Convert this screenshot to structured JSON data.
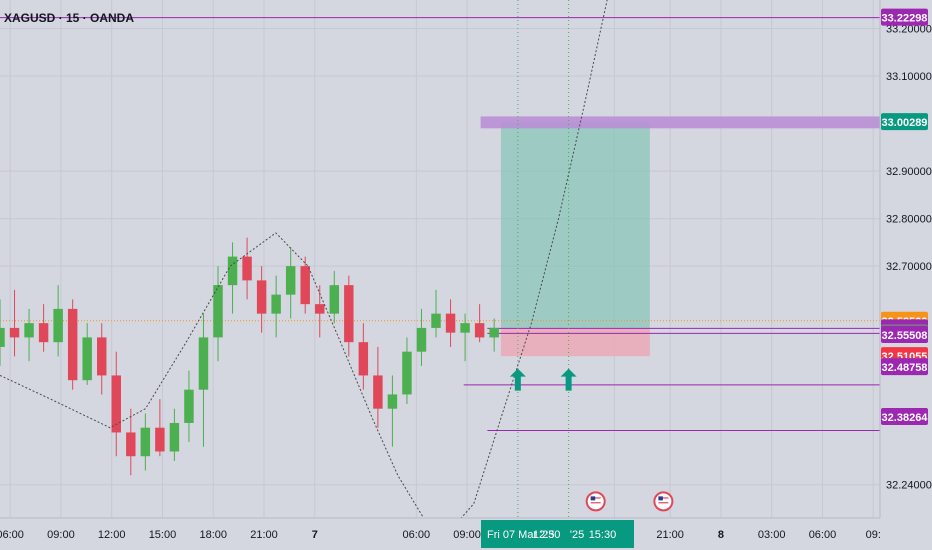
{
  "header": {
    "symbol": "XAGUSD · 15 · OANDA"
  },
  "chart_data": {
    "type": "candlestick",
    "title": "XAGUSD · 15 · OANDA",
    "ylim": [
      32.17,
      33.26
    ],
    "x_ticks": [
      {
        "label": "06:00",
        "x": 0.6
      },
      {
        "label": "09:00",
        "x": 3.6
      },
      {
        "label": "12:00",
        "x": 6.6
      },
      {
        "label": "15:00",
        "x": 9.6
      },
      {
        "label": "18:00",
        "x": 12.6
      },
      {
        "label": "21:00",
        "x": 15.6
      },
      {
        "label": "7",
        "x": 18.6,
        "bold": true
      },
      {
        "label": "06:00",
        "x": 24.6
      },
      {
        "label": "09:00",
        "x": 27.6
      },
      {
        "label": "0",
        "x": 36.3
      },
      {
        "label": "21:00",
        "x": 39.6
      },
      {
        "label": "8",
        "x": 42.6,
        "bold": true
      },
      {
        "label": "03:00",
        "x": 45.6
      },
      {
        "label": "06:00",
        "x": 48.6
      },
      {
        "label": "09:",
        "x": 51.6
      }
    ],
    "x_domain": [
      0.0,
      52.0
    ],
    "y_ticks": [
      32.24,
      32.7,
      32.8,
      32.9,
      33.1,
      33.2
    ],
    "y_tick_labels": [
      "32.24000",
      "32.70000",
      "32.80000",
      "32.90000",
      "33.10000",
      "33.20000"
    ],
    "price_labels": [
      {
        "value": 33.22298,
        "text": "33.22298",
        "color": "#9c27b0"
      },
      {
        "value": 33.00289,
        "text": "33.00289",
        "color": "#089981"
      },
      {
        "value": 32.585,
        "text": "32.58500",
        "color": "#f7931a",
        "sub": "14:15"
      },
      {
        "value": 32.56905,
        "text": "32.56905",
        "color": "#9c27b0"
      },
      {
        "value": 32.55859,
        "text": "32.55859",
        "color": "#787b86"
      },
      {
        "value": 32.55508,
        "text": "32.55508",
        "color": "#9c27b0"
      },
      {
        "value": 32.51055,
        "text": "32.51055",
        "color": "#f23645"
      },
      {
        "value": 32.48758,
        "text": "32.48758",
        "color": "#9c27b0"
      },
      {
        "value": 32.38264,
        "text": "32.38264",
        "color": "#9c27b0"
      }
    ],
    "horizontal_lines": [
      {
        "value": 33.22298,
        "x_from": 0.0,
        "x_to": 52.0,
        "color": "#9c27b0"
      },
      {
        "value": 32.56905,
        "x_from": 28.8,
        "x_to": 52.0,
        "color": "#9c27b0"
      },
      {
        "value": 32.55859,
        "x_from": 28.8,
        "x_to": 52.0,
        "color": "#9c27b0"
      },
      {
        "value": 32.45,
        "x_from": 27.4,
        "x_to": 52.0,
        "color": "#9c27b0"
      },
      {
        "value": 32.354,
        "x_from": 28.8,
        "x_to": 52.0,
        "color": "#9c27b0"
      }
    ],
    "current_price": 32.585,
    "position_tool": {
      "type": "long",
      "x_from": 29.6,
      "x_to": 38.4,
      "entry": 32.57,
      "target": 33.00289,
      "stop": 32.51055,
      "band": {
        "from": 32.99,
        "to": 33.015,
        "x_from": 28.4,
        "x_to": 52.0
      }
    },
    "vertical_lines": [
      {
        "x": 30.6
      },
      {
        "x": 33.6
      }
    ],
    "curve_points": [
      [
        0.0,
        32.47
      ],
      [
        3.0,
        32.42
      ],
      [
        6.5,
        32.36
      ],
      [
        8.6,
        32.4
      ],
      [
        11.0,
        32.54
      ],
      [
        13.6,
        32.7
      ],
      [
        16.3,
        32.77
      ],
      [
        18.2,
        32.7
      ],
      [
        20.0,
        32.55
      ],
      [
        22.0,
        32.38
      ],
      [
        23.5,
        32.26
      ],
      [
        25.2,
        32.16
      ],
      [
        26.5,
        32.14
      ],
      [
        28.0,
        32.2
      ],
      [
        29.6,
        32.38
      ],
      [
        31.4,
        32.58
      ],
      [
        33.0,
        32.8
      ],
      [
        34.6,
        33.05
      ],
      [
        36.0,
        33.28
      ],
      [
        37.4,
        33.5
      ]
    ],
    "arrows": [
      {
        "x": 30.6,
        "y": 32.48
      },
      {
        "x": 33.6,
        "y": 32.48
      }
    ],
    "event_icons": [
      {
        "x": 35.2,
        "y": 32.205
      },
      {
        "x": 39.2,
        "y": 32.205
      }
    ],
    "time_badge": {
      "text": "Fri 07 Mar '25",
      "x": 28.6,
      "color": "#089981"
    },
    "time_labels": [
      {
        "text": "12:30",
        "x": 32.3
      },
      {
        "text": "'25",
        "x": 34.1
      },
      {
        "text": "15:30",
        "x": 35.6
      }
    ],
    "candles": [
      {
        "o": 32.53,
        "h": 32.63,
        "l": 32.49,
        "c": 32.57
      },
      {
        "o": 32.57,
        "h": 32.65,
        "l": 32.51,
        "c": 32.55
      },
      {
        "o": 32.55,
        "h": 32.61,
        "l": 32.5,
        "c": 32.58
      },
      {
        "o": 32.58,
        "h": 32.62,
        "l": 32.52,
        "c": 32.54
      },
      {
        "o": 32.54,
        "h": 32.66,
        "l": 32.51,
        "c": 32.61
      },
      {
        "o": 32.61,
        "h": 32.63,
        "l": 32.44,
        "c": 32.46
      },
      {
        "o": 32.46,
        "h": 32.58,
        "l": 32.45,
        "c": 32.55
      },
      {
        "o": 32.55,
        "h": 32.58,
        "l": 32.43,
        "c": 32.47
      },
      {
        "o": 32.47,
        "h": 32.52,
        "l": 32.3,
        "c": 32.35
      },
      {
        "o": 32.35,
        "h": 32.4,
        "l": 32.26,
        "c": 32.3
      },
      {
        "o": 32.3,
        "h": 32.39,
        "l": 32.27,
        "c": 32.36
      },
      {
        "o": 32.36,
        "h": 32.42,
        "l": 32.3,
        "c": 32.31
      },
      {
        "o": 32.31,
        "h": 32.4,
        "l": 32.29,
        "c": 32.37
      },
      {
        "o": 32.37,
        "h": 32.48,
        "l": 32.33,
        "c": 32.44
      },
      {
        "o": 32.44,
        "h": 32.6,
        "l": 32.32,
        "c": 32.55
      },
      {
        "o": 32.55,
        "h": 32.7,
        "l": 32.5,
        "c": 32.66
      },
      {
        "o": 32.66,
        "h": 32.75,
        "l": 32.6,
        "c": 32.72
      },
      {
        "o": 32.72,
        "h": 32.76,
        "l": 32.63,
        "c": 32.67
      },
      {
        "o": 32.67,
        "h": 32.7,
        "l": 32.56,
        "c": 32.6
      },
      {
        "o": 32.6,
        "h": 32.68,
        "l": 32.55,
        "c": 32.64
      },
      {
        "o": 32.64,
        "h": 32.74,
        "l": 32.59,
        "c": 32.7
      },
      {
        "o": 32.7,
        "h": 32.72,
        "l": 32.6,
        "c": 32.62
      },
      {
        "o": 32.62,
        "h": 32.66,
        "l": 32.55,
        "c": 32.6
      },
      {
        "o": 32.6,
        "h": 32.69,
        "l": 32.58,
        "c": 32.66
      },
      {
        "o": 32.66,
        "h": 32.68,
        "l": 32.51,
        "c": 32.54
      },
      {
        "o": 32.54,
        "h": 32.58,
        "l": 32.44,
        "c": 32.47
      },
      {
        "o": 32.47,
        "h": 32.53,
        "l": 32.36,
        "c": 32.4
      },
      {
        "o": 32.4,
        "h": 32.47,
        "l": 32.32,
        "c": 32.43
      },
      {
        "o": 32.43,
        "h": 32.55,
        "l": 32.41,
        "c": 32.52
      },
      {
        "o": 32.52,
        "h": 32.61,
        "l": 32.49,
        "c": 32.57
      },
      {
        "o": 32.57,
        "h": 32.65,
        "l": 32.55,
        "c": 32.6
      },
      {
        "o": 32.6,
        "h": 32.63,
        "l": 32.53,
        "c": 32.56
      },
      {
        "o": 32.56,
        "h": 32.6,
        "l": 32.5,
        "c": 32.58
      },
      {
        "o": 32.58,
        "h": 32.62,
        "l": 32.54,
        "c": 32.55
      },
      {
        "o": 32.55,
        "h": 32.59,
        "l": 32.52,
        "c": 32.57
      }
    ]
  }
}
